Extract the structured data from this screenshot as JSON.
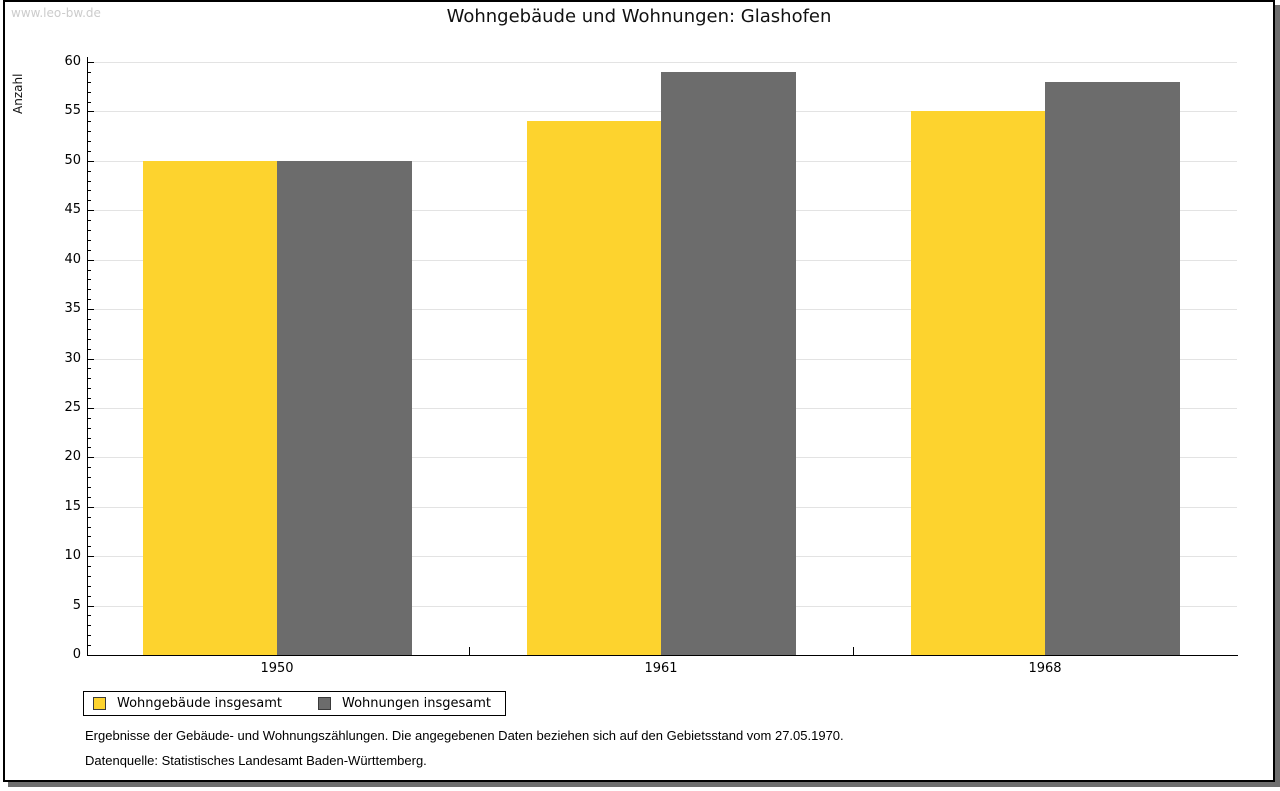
{
  "watermark": "www.leo-bw.de",
  "chart_data": {
    "type": "bar",
    "title": "Wohngebäude und Wohnungen: Glashofen",
    "categories": [
      "1950",
      "1961",
      "1968"
    ],
    "series": [
      {
        "name": "Wohngebäude insgesamt",
        "color": "#FDD32E",
        "values": [
          50,
          54,
          55
        ]
      },
      {
        "name": "Wohnungen insgesamt",
        "color": "#6C6C6C",
        "values": [
          50,
          59,
          58
        ]
      }
    ],
    "xlabel": "",
    "ylabel": "Anzahl",
    "ylim": [
      0,
      60
    ],
    "y_major_step": 5,
    "y_minor_step": 1,
    "y_tick_labels": [
      "0",
      "5",
      "10",
      "15",
      "20",
      "25",
      "30",
      "35",
      "40",
      "45",
      "50",
      "55",
      "60"
    ],
    "grid": "horizontal-major",
    "legend_position": "bottom-left"
  },
  "footnotes": {
    "line1": "Ergebnisse der Gebäude- und Wohnungszählungen. Die angegebenen Daten beziehen sich auf den Gebietsstand vom 27.05.1970.",
    "line2": "Datenquelle: Statistisches Landesamt Baden-Württemberg."
  }
}
